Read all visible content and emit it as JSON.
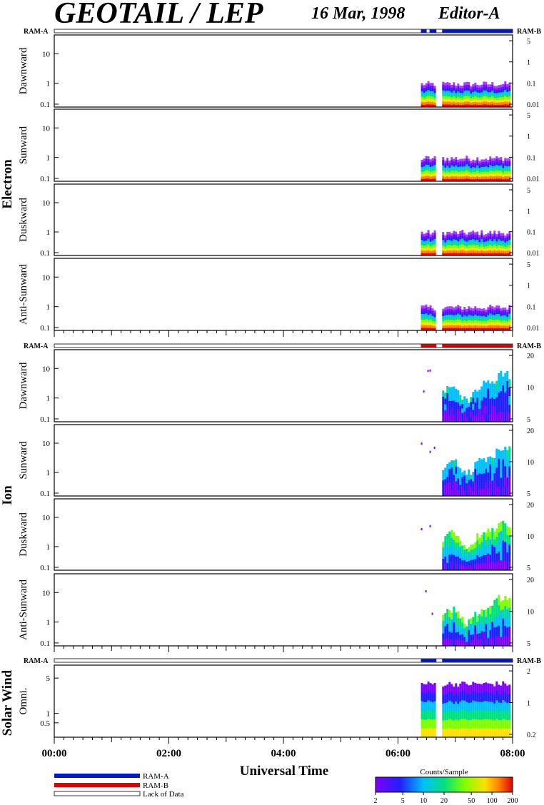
{
  "header": {
    "title": "GEOTAIL / LEP",
    "date": "16 Mar, 1998",
    "editor": "Editor-A"
  },
  "labels": {
    "ram_a": "RAM-A",
    "ram_b": "RAM-B",
    "lack_of_data": "Lack of Data",
    "xlabel": "Universal Time",
    "colorbar_title": "Counts/Sample"
  },
  "colors": {
    "ram_a": "#0018c8",
    "ram_b": "#e00000",
    "lack": "#ffffff"
  },
  "chart_data": {
    "type": "heatmap",
    "x_range_hours": [
      0,
      8
    ],
    "x_ticks": [
      "00:00",
      "02:00",
      "04:00",
      "06:00",
      "08:00"
    ],
    "colorbar": {
      "ticks": [
        "2",
        "5",
        "10",
        "20",
        "50",
        "100",
        "200"
      ],
      "min": 2,
      "max": 200,
      "scale": "log"
    },
    "groups": [
      {
        "name": "Electron",
        "ram_bar": {
          "segments": [
            {
              "from": 6.4,
              "to": 6.5,
              "mode": "ram_a"
            },
            {
              "from": 6.55,
              "to": 6.67,
              "mode": "ram_a"
            },
            {
              "from": 6.77,
              "to": 8.0,
              "mode": "ram_a"
            }
          ]
        },
        "panels": [
          {
            "name": "Dawnward",
            "left_ticks": [
              "10",
              "1",
              "0.1"
            ],
            "right_ticks": [
              "5",
              "1",
              "0.1",
              "0.01"
            ]
          },
          {
            "name": "Sunward",
            "left_ticks": [
              "10",
              "1",
              "0.1"
            ],
            "right_ticks": [
              "5",
              "1",
              "0.1",
              "0.01"
            ]
          },
          {
            "name": "Duskward",
            "left_ticks": [
              "10",
              "1",
              "0.1"
            ],
            "right_ticks": [
              "5",
              "1",
              "0.1",
              "0.01"
            ]
          },
          {
            "name": "Anti-Sunward",
            "left_ticks": [
              "10",
              "1",
              "0.1"
            ],
            "right_ticks": [
              "5",
              "1",
              "0.1",
              "0.01"
            ]
          }
        ],
        "data_interval_hours": [
          [
            6.4,
            6.67
          ],
          [
            6.77,
            8.0
          ]
        ]
      },
      {
        "name": "Ion",
        "ram_bar": {
          "segments": [
            {
              "from": 6.4,
              "to": 6.67,
              "mode": "ram_b"
            },
            {
              "from": 6.77,
              "to": 8.0,
              "mode": "ram_b"
            }
          ]
        },
        "panels": [
          {
            "name": "Dawnward",
            "left_ticks": [
              "10",
              "1",
              "0.1"
            ],
            "right_ticks": [
              "20",
              "10",
              "5"
            ]
          },
          {
            "name": "Sunward",
            "left_ticks": [
              "10",
              "1",
              "0.1"
            ],
            "right_ticks": [
              "20",
              "10",
              "5"
            ]
          },
          {
            "name": "Duskward",
            "left_ticks": [
              "10",
              "1",
              "0.1"
            ],
            "right_ticks": [
              "20",
              "10",
              "5"
            ]
          },
          {
            "name": "Anti-Sunward",
            "left_ticks": [
              "10",
              "1",
              "0.1"
            ],
            "right_ticks": [
              "20",
              "10",
              "5"
            ]
          }
        ],
        "data_interval_hours": [
          [
            6.4,
            6.67
          ],
          [
            6.77,
            8.0
          ]
        ]
      },
      {
        "name": "Solar Wind",
        "ram_bar": {
          "segments": [
            {
              "from": 6.4,
              "to": 6.67,
              "mode": "ram_a"
            },
            {
              "from": 6.77,
              "to": 8.0,
              "mode": "ram_a"
            }
          ]
        },
        "panels": [
          {
            "name": "Omni.",
            "left_ticks": [
              "5",
              "1",
              "0.5"
            ],
            "right_ticks": [
              "2",
              "1",
              "0.2"
            ]
          }
        ],
        "data_interval_hours": [
          [
            6.4,
            6.67
          ],
          [
            6.77,
            8.0
          ]
        ]
      }
    ]
  }
}
